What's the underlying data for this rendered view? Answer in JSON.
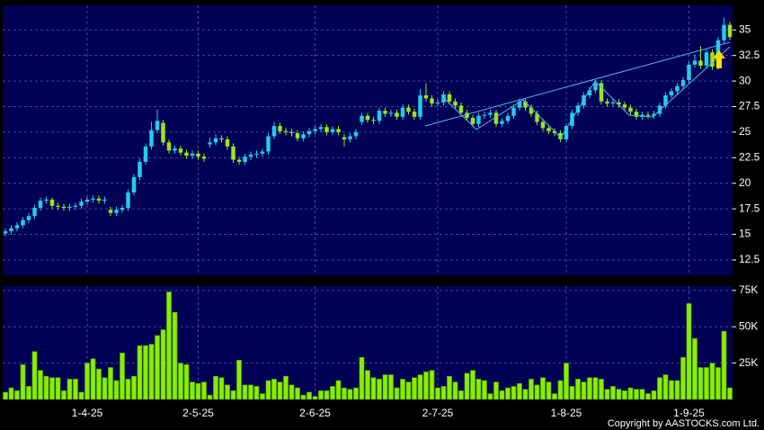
{
  "chart_data": [
    {
      "type": "candlestick",
      "up_color": "#22ccee",
      "down_color": "#99e619",
      "grid": true,
      "ylim": [
        11,
        37.4
      ],
      "yticks": [
        12.5,
        15,
        17.5,
        20,
        22.5,
        25,
        27.5,
        30,
        32.5,
        35
      ],
      "open": [
        15.1,
        15.3,
        15.6,
        15.9,
        16.4,
        16.8,
        17.6,
        18.3,
        18.4,
        17.8,
        17.7,
        17.6,
        17.7,
        17.8,
        18.2,
        18.4,
        18.5,
        18.3,
        17.4,
        17.1,
        17.4,
        17.6,
        19.1,
        20.6,
        22.1,
        23.6,
        25.2,
        25.9,
        24.0,
        23.2,
        23.4,
        23.0,
        22.7,
        22.9,
        22.6,
        23.8,
        24.0,
        24.4,
        24.3,
        23.6,
        22.3,
        22.1,
        22.6,
        22.8,
        22.9,
        23.1,
        24.6,
        25.6,
        25.1,
        25.0,
        24.9,
        24.4,
        24.8,
        25.1,
        25.3,
        25.5,
        25.0,
        25.3,
        24.5,
        24.3,
        24.6,
        26.0,
        26.6,
        26.2,
        26.1,
        27.1,
        26.8,
        26.9,
        26.5,
        27.4,
        27.0,
        26.5,
        28.6,
        28.3,
        27.8,
        27.9,
        28.7,
        28.0,
        27.6,
        26.9,
        26.4,
        25.8,
        26.6,
        26.7,
        26.9,
        25.8,
        26.1,
        26.6,
        27.4,
        28.0,
        27.4,
        26.8,
        26.0,
        25.4,
        25.1,
        24.9,
        24.3,
        25.6,
        26.9,
        27.6,
        28.6,
        29.1,
        29.8,
        28.0,
        27.8,
        27.9,
        27.7,
        27.4,
        27.0,
        26.5,
        26.7,
        26.6,
        26.8,
        27.6,
        28.6,
        29.0,
        29.5,
        30.1,
        31.6,
        32.0,
        31.5,
        32.8,
        31.4,
        34.0,
        35.5
      ],
      "high": [
        15.6,
        15.9,
        16.2,
        16.7,
        17.1,
        17.9,
        18.6,
        18.7,
        18.6,
        18.1,
        18.0,
        18.0,
        18.1,
        18.5,
        18.7,
        18.8,
        18.8,
        18.7,
        17.7,
        17.7,
        17.9,
        19.4,
        20.9,
        22.4,
        23.9,
        26.0,
        27.2,
        26.2,
        24.3,
        23.7,
        23.7,
        23.3,
        23.2,
        23.2,
        22.9,
        24.5,
        24.8,
        24.7,
        24.6,
        23.9,
        22.6,
        22.9,
        23.1,
        23.2,
        23.4,
        24.9,
        26.0,
        25.9,
        25.4,
        25.3,
        25.2,
        25.1,
        25.4,
        25.6,
        25.8,
        25.8,
        25.6,
        25.6,
        24.8,
        24.9,
        25.3,
        26.9,
        26.9,
        26.5,
        27.4,
        27.4,
        27.2,
        27.2,
        27.7,
        27.7,
        27.3,
        29.2,
        29.8,
        28.6,
        28.2,
        29.0,
        29.0,
        28.3,
        27.9,
        27.2,
        26.7,
        26.9,
        27.0,
        27.2,
        27.2,
        26.4,
        26.9,
        27.7,
        28.3,
        28.3,
        27.7,
        27.1,
        26.3,
        25.7,
        25.4,
        25.2,
        25.9,
        27.2,
        27.9,
        28.9,
        29.4,
        30.1,
        30.1,
        28.3,
        28.2,
        28.2,
        28.0,
        27.7,
        27.3,
        27.0,
        27.0,
        27.1,
        27.9,
        28.9,
        29.3,
        29.8,
        30.4,
        31.9,
        32.6,
        33.4,
        33.1,
        33.1,
        34.3,
        36.2,
        35.8
      ],
      "low": [
        14.8,
        15.0,
        15.3,
        15.6,
        16.1,
        16.5,
        17.3,
        18.0,
        17.5,
        17.4,
        17.3,
        17.3,
        17.4,
        17.5,
        17.9,
        18.1,
        18.0,
        18.0,
        16.8,
        16.8,
        17.1,
        17.3,
        18.8,
        20.3,
        21.8,
        23.3,
        24.9,
        23.7,
        22.9,
        22.9,
        22.7,
        22.4,
        22.4,
        22.3,
        22.1,
        23.5,
        23.7,
        24.0,
        23.3,
        22.0,
        21.8,
        21.8,
        22.3,
        22.5,
        22.6,
        22.8,
        24.3,
        24.8,
        24.7,
        24.6,
        24.1,
        24.1,
        24.5,
        24.8,
        25.0,
        24.7,
        24.7,
        24.7,
        23.6,
        24.0,
        24.3,
        25.7,
        25.9,
        25.8,
        25.8,
        26.5,
        26.5,
        26.2,
        26.2,
        26.7,
        26.2,
        26.2,
        28.0,
        27.5,
        27.5,
        27.6,
        27.7,
        27.3,
        26.6,
        26.1,
        25.5,
        25.5,
        26.3,
        26.4,
        25.5,
        25.5,
        25.8,
        26.3,
        27.1,
        27.1,
        26.5,
        25.7,
        25.1,
        24.8,
        24.6,
        24.0,
        24.0,
        25.3,
        26.6,
        27.3,
        28.3,
        28.8,
        27.7,
        27.5,
        27.5,
        27.4,
        27.1,
        26.7,
        26.2,
        26.2,
        26.3,
        26.3,
        26.5,
        27.3,
        28.3,
        28.7,
        29.2,
        29.8,
        31.3,
        31.2,
        31.2,
        31.1,
        31.1,
        33.7,
        34.0
      ],
      "close": [
        15.3,
        15.6,
        15.9,
        16.4,
        16.8,
        17.6,
        18.3,
        18.4,
        17.8,
        17.7,
        17.6,
        17.7,
        17.8,
        18.2,
        18.4,
        18.5,
        18.3,
        18.4,
        17.1,
        17.4,
        17.6,
        19.1,
        20.6,
        22.1,
        23.6,
        25.2,
        26.1,
        24.0,
        23.2,
        23.4,
        23.0,
        22.7,
        22.9,
        22.6,
        22.4,
        24.0,
        24.4,
        24.3,
        23.6,
        22.3,
        22.1,
        22.6,
        22.8,
        22.9,
        23.1,
        24.6,
        25.6,
        25.1,
        25.0,
        24.9,
        24.4,
        24.8,
        25.1,
        25.3,
        25.5,
        25.0,
        25.3,
        25.0,
        24.3,
        24.6,
        25.0,
        26.6,
        26.2,
        26.1,
        27.1,
        26.8,
        26.9,
        26.5,
        27.4,
        27.0,
        26.5,
        28.6,
        28.3,
        27.8,
        27.9,
        28.7,
        28.0,
        27.6,
        26.9,
        26.4,
        25.8,
        26.6,
        26.7,
        26.9,
        25.8,
        26.1,
        26.6,
        27.4,
        28.0,
        27.4,
        26.8,
        26.0,
        25.4,
        25.1,
        24.9,
        24.3,
        25.6,
        26.9,
        27.6,
        28.6,
        29.1,
        29.8,
        28.0,
        27.8,
        27.9,
        27.7,
        27.4,
        27.0,
        26.5,
        26.7,
        26.6,
        26.8,
        27.6,
        28.6,
        29.0,
        29.5,
        30.1,
        31.6,
        32.0,
        31.5,
        32.8,
        31.4,
        34.0,
        35.5,
        34.3
      ]
    },
    {
      "type": "bar",
      "color": "#88ee00",
      "grid": true,
      "ylim": [
        0,
        78000
      ],
      "yticks": [
        {
          "value": 25000,
          "label": "25K"
        },
        {
          "value": 50000,
          "label": "50K"
        },
        {
          "value": 75000,
          "label": "75K"
        }
      ],
      "categories": [
        null,
        null,
        null,
        null,
        null,
        null,
        null,
        null,
        null,
        null,
        null,
        null,
        null,
        null,
        "1-4-25",
        null,
        null,
        null,
        null,
        null,
        null,
        null,
        null,
        null,
        null,
        null,
        null,
        null,
        null,
        null,
        null,
        null,
        null,
        "2-5-25",
        null,
        null,
        null,
        null,
        null,
        null,
        null,
        null,
        null,
        null,
        null,
        null,
        null,
        null,
        null,
        null,
        null,
        null,
        null,
        "2-6-25",
        null,
        null,
        null,
        null,
        null,
        null,
        null,
        null,
        null,
        null,
        null,
        null,
        null,
        null,
        null,
        null,
        null,
        null,
        null,
        null,
        "2-7-25",
        null,
        null,
        null,
        null,
        null,
        null,
        null,
        null,
        null,
        null,
        null,
        null,
        null,
        null,
        null,
        null,
        null,
        null,
        null,
        null,
        null,
        "1-8-25",
        null,
        null,
        null,
        null,
        null,
        null,
        null,
        null,
        null,
        null,
        null,
        null,
        null,
        null,
        null,
        null,
        null,
        null,
        null,
        null,
        "1-9-25",
        null,
        null,
        null,
        null,
        null,
        null,
        null
      ],
      "values": [
        5000,
        8000,
        6000,
        24000,
        9000,
        33000,
        20000,
        16000,
        15000,
        15000,
        6000,
        14000,
        14000,
        5000,
        25000,
        28000,
        21000,
        15000,
        22000,
        13000,
        32000,
        14000,
        16000,
        37000,
        37000,
        38000,
        44000,
        48000,
        74000,
        60000,
        25000,
        24000,
        12000,
        11000,
        12000,
        3000,
        16000,
        15000,
        10000,
        6000,
        27000,
        10000,
        10000,
        9000,
        4000,
        13000,
        14000,
        12000,
        16000,
        10000,
        8000,
        3000,
        5000,
        2000,
        6000,
        6000,
        9000,
        13000,
        8000,
        7000,
        8000,
        29000,
        20000,
        15000,
        14000,
        17000,
        17000,
        8000,
        14000,
        12000,
        15000,
        17000,
        19000,
        20000,
        8000,
        9000,
        16000,
        12000,
        6000,
        18000,
        20000,
        14000,
        13000,
        4000,
        12000,
        6000,
        8000,
        9000,
        11000,
        7000,
        14000,
        10000,
        15000,
        12000,
        4000,
        13000,
        25000,
        9000,
        14000,
        12000,
        15000,
        15000,
        14000,
        7000,
        9000,
        7000,
        6000,
        8000,
        7000,
        7000,
        4000,
        6000,
        15000,
        17000,
        13000,
        13000,
        29000,
        66000,
        42000,
        22000,
        22000,
        25000,
        22000,
        47000,
        8000
      ]
    }
  ],
  "copyright": "Copyright by AASTOCKS.com Ltd."
}
